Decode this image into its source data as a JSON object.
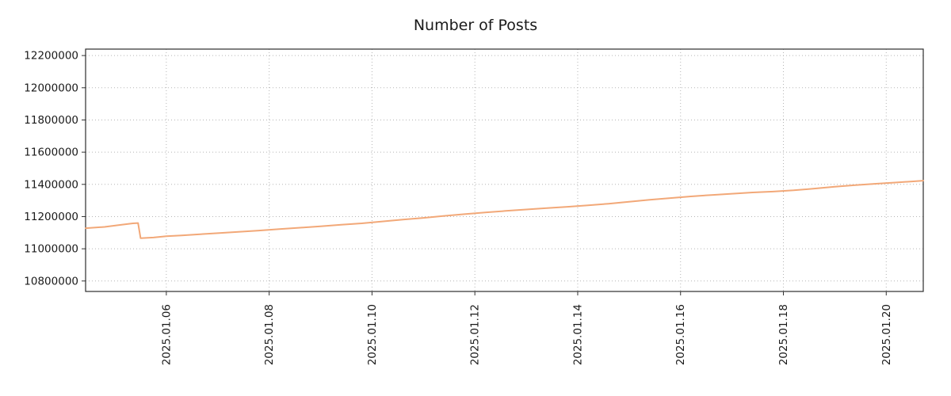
{
  "chart_data": {
    "type": "line",
    "title": "Number of Posts",
    "xlabel": "",
    "ylabel": "",
    "legend": "none",
    "grid": "dotted",
    "line_color": "#f2a878",
    "xlim": [
      4.43,
      20.72
    ],
    "ylim": [
      10735000,
      12240000
    ],
    "x_ticks": [
      {
        "value": 6,
        "label": "2025.01.06"
      },
      {
        "value": 8,
        "label": "2025.01.08"
      },
      {
        "value": 10,
        "label": "2025.01.10"
      },
      {
        "value": 12,
        "label": "2025.01.12"
      },
      {
        "value": 14,
        "label": "2025.01.14"
      },
      {
        "value": 16,
        "label": "2025.01.16"
      },
      {
        "value": 18,
        "label": "2025.01.18"
      },
      {
        "value": 20,
        "label": "2025.01.20"
      }
    ],
    "y_ticks": [
      {
        "value": 10800000,
        "label": "10800000"
      },
      {
        "value": 11000000,
        "label": "11000000"
      },
      {
        "value": 11200000,
        "label": "11200000"
      },
      {
        "value": 11400000,
        "label": "11400000"
      },
      {
        "value": 11600000,
        "label": "11600000"
      },
      {
        "value": 11800000,
        "label": "11800000"
      },
      {
        "value": 12000000,
        "label": "12000000"
      },
      {
        "value": 12200000,
        "label": "12200000"
      }
    ],
    "series": [
      {
        "name": "Number of Posts",
        "points": [
          [
            4.43,
            11128000
          ],
          [
            4.8,
            11136000
          ],
          [
            5.1,
            11148000
          ],
          [
            5.35,
            11158000
          ],
          [
            5.45,
            11160000
          ],
          [
            5.5,
            11066000
          ],
          [
            5.75,
            11070000
          ],
          [
            6.0,
            11078000
          ],
          [
            6.3,
            11083000
          ],
          [
            6.6,
            11089000
          ],
          [
            7.0,
            11097000
          ],
          [
            7.4,
            11105000
          ],
          [
            7.8,
            11113000
          ],
          [
            8.2,
            11122000
          ],
          [
            8.6,
            11131000
          ],
          [
            9.0,
            11140000
          ],
          [
            9.4,
            11149000
          ],
          [
            9.8,
            11158000
          ],
          [
            10.2,
            11170000
          ],
          [
            10.6,
            11181000
          ],
          [
            11.0,
            11192000
          ],
          [
            11.4,
            11204000
          ],
          [
            11.8,
            11215000
          ],
          [
            12.2,
            11226000
          ],
          [
            12.6,
            11235000
          ],
          [
            13.0,
            11244000
          ],
          [
            13.4,
            11253000
          ],
          [
            13.8,
            11261000
          ],
          [
            14.2,
            11270000
          ],
          [
            14.6,
            11280000
          ],
          [
            15.0,
            11292000
          ],
          [
            15.4,
            11304000
          ],
          [
            15.8,
            11315000
          ],
          [
            16.2,
            11325000
          ],
          [
            16.6,
            11334000
          ],
          [
            17.0,
            11342000
          ],
          [
            17.4,
            11350000
          ],
          [
            17.8,
            11355000
          ],
          [
            18.2,
            11363000
          ],
          [
            18.6,
            11374000
          ],
          [
            19.0,
            11385000
          ],
          [
            19.4,
            11395000
          ],
          [
            19.8,
            11404000
          ],
          [
            20.2,
            11412000
          ],
          [
            20.5,
            11418000
          ],
          [
            20.72,
            11423000
          ]
        ]
      }
    ]
  }
}
